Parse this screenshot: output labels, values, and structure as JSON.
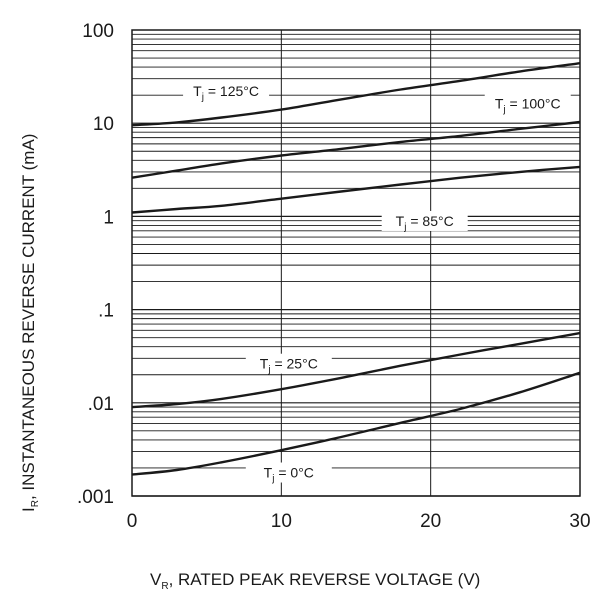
{
  "chart_data": {
    "type": "line",
    "title": "",
    "xlabel": "V",
    "xlabel_sub": "R",
    "xlabel_rest": ", RATED PEAK REVERSE VOLTAGE (V)",
    "ylabel": "I",
    "ylabel_sub": "R",
    "ylabel_rest": ", INSTANTANEOUS REVERSE CURRENT (mA)",
    "xlim": [
      0,
      30
    ],
    "ylim": [
      0.001,
      100
    ],
    "y_scale": "log",
    "grid": true,
    "x_ticks": [
      {
        "value": 0,
        "label": "0"
      },
      {
        "value": 10,
        "label": "10"
      },
      {
        "value": 20,
        "label": "20"
      },
      {
        "value": 30,
        "label": "30"
      }
    ],
    "y_ticks": [
      {
        "value": 100,
        "label": "100"
      },
      {
        "value": 10,
        "label": "10"
      },
      {
        "value": 1,
        "label": "1"
      },
      {
        "value": 0.1,
        "label": ".1"
      },
      {
        "value": 0.01,
        "label": ".01"
      },
      {
        "value": 0.001,
        "label": ".001"
      }
    ],
    "series": [
      {
        "label_main": "T",
        "label_sub": "j",
        "label_rest": " = 125°C",
        "x": [
          0,
          3,
          6,
          10,
          14,
          18,
          22,
          26,
          30
        ],
        "values": [
          9.5,
          10.2,
          11.5,
          14,
          18,
          23,
          28.5,
          36,
          44
        ]
      },
      {
        "label_main": "T",
        "label_sub": "j",
        "label_rest": " = 100°C",
        "x": [
          0,
          3,
          6,
          10,
          14,
          18,
          22,
          26,
          30
        ],
        "values": [
          2.6,
          3.1,
          3.7,
          4.5,
          5.3,
          6.3,
          7.3,
          8.7,
          10.3
        ]
      },
      {
        "label_main": "T",
        "label_sub": "j",
        "label_rest": " = 85°C",
        "x": [
          0,
          3,
          6,
          10,
          14,
          18,
          22,
          26,
          30
        ],
        "values": [
          1.1,
          1.2,
          1.3,
          1.55,
          1.85,
          2.2,
          2.6,
          3.0,
          3.4
        ]
      },
      {
        "label_main": "T",
        "label_sub": "j",
        "label_rest": " = 25°C",
        "x": [
          0,
          3,
          6,
          10,
          14,
          18,
          22,
          26,
          30
        ],
        "values": [
          0.009,
          0.0097,
          0.011,
          0.014,
          0.0185,
          0.025,
          0.033,
          0.043,
          0.056
        ]
      },
      {
        "label_main": "T",
        "label_sub": "j",
        "label_rest": " = 0°C",
        "x": [
          0,
          3,
          6,
          10,
          14,
          18,
          22,
          26,
          30
        ],
        "values": [
          0.0017,
          0.0019,
          0.0023,
          0.0031,
          0.0043,
          0.0061,
          0.0086,
          0.013,
          0.021
        ]
      }
    ]
  }
}
